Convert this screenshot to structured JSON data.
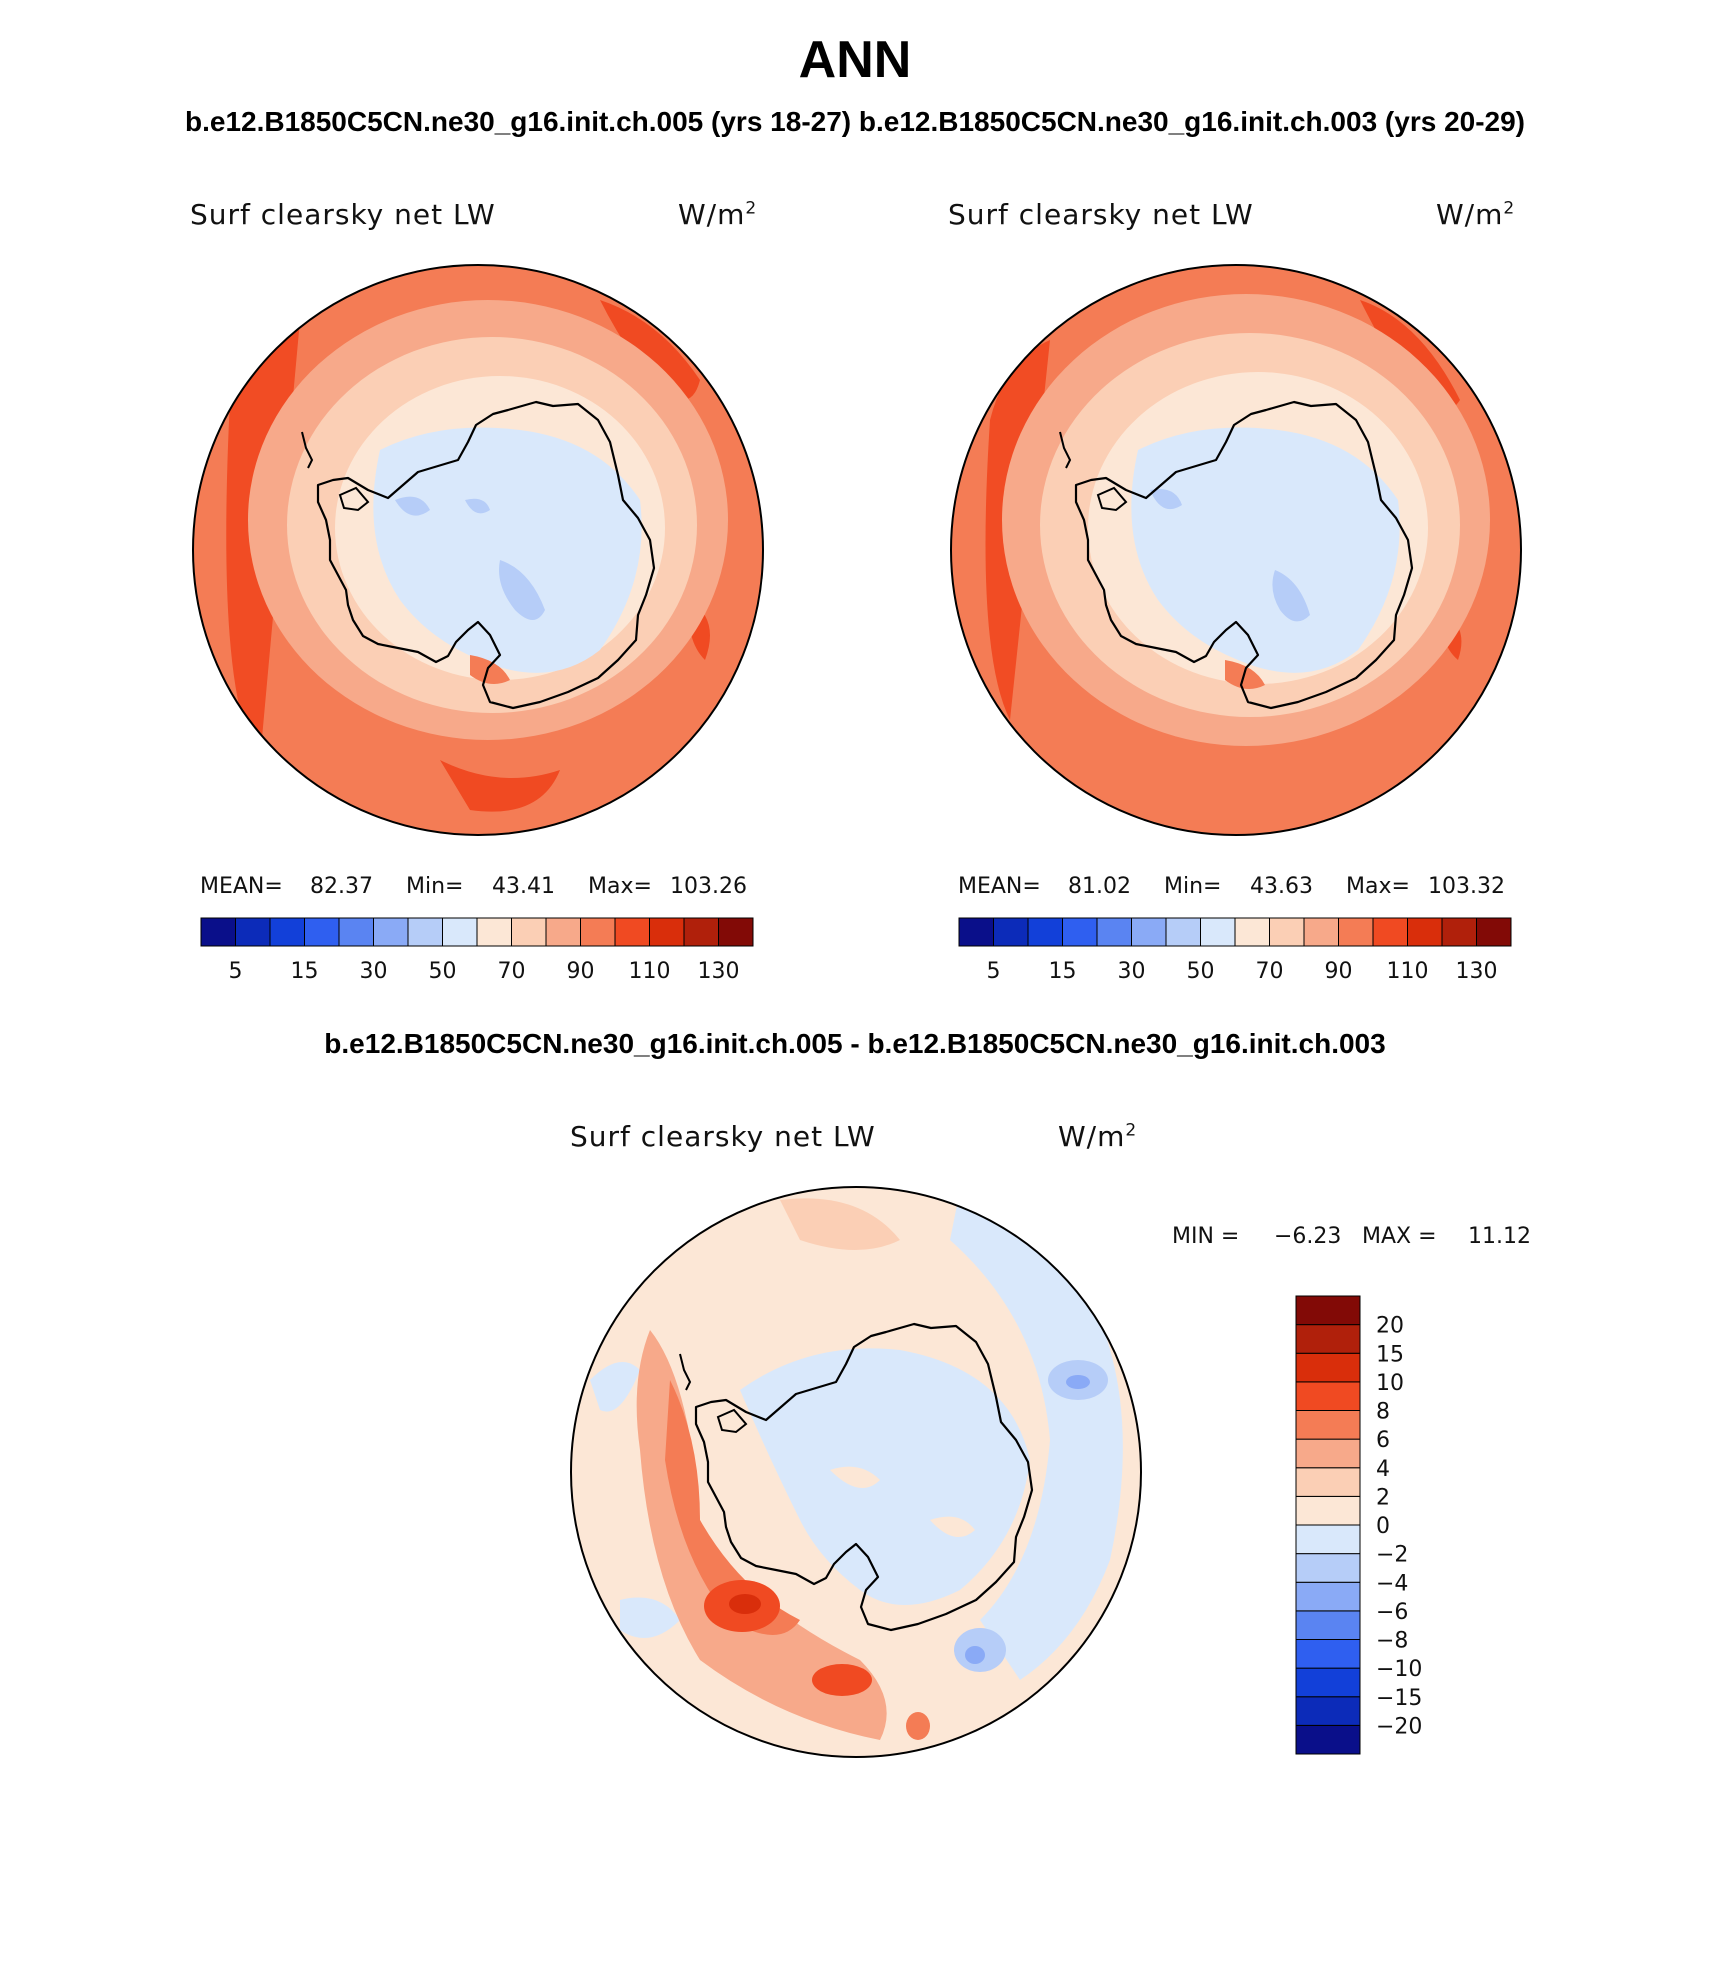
{
  "figure": {
    "season": "ANN",
    "subtitle": "b.e12.B1850C5CN.ne30_g16.init.ch.005 (yrs 18-27) b.e12.B1850C5CN.ne30_g16.init.ch.003 (yrs 20-29)",
    "diff_title": "b.e12.B1850C5CN.ne30_g16.init.ch.005 - b.e12.B1850C5CN.ne30_g16.init.ch.003"
  },
  "panels": [
    {
      "variable": "Surf clearsky net LW",
      "units_base": "W/m",
      "units_exp": "2",
      "mean_label": "MEAN=",
      "mean_value": "82.37",
      "min_label": "Min=",
      "min_value": "43.41",
      "max_label": "Max=",
      "max_value": "103.26"
    },
    {
      "variable": "Surf clearsky net LW",
      "units_base": "W/m",
      "units_exp": "2",
      "mean_label": "MEAN=",
      "mean_value": "81.02",
      "min_label": "Min=",
      "min_value": "43.63",
      "max_label": "Max=",
      "max_value": "103.32"
    },
    {
      "variable": "Surf clearsky net LW",
      "units_base": "W/m",
      "units_exp": "2",
      "min_label": "MIN =",
      "min_value": "−6.23",
      "max_label": "MAX =",
      "max_value": "11.12"
    }
  ],
  "colorbar_abs": {
    "colors": [
      "#0a0f8a",
      "#0c2bb9",
      "#1240d9",
      "#2f5ff0",
      "#5a84f2",
      "#8aaaf6",
      "#b6cdf8",
      "#d9e8fb",
      "#fce7d6",
      "#fbcfb5",
      "#f7a98a",
      "#f47c55",
      "#f04a22",
      "#d92e0b",
      "#b0200b",
      "#820a06"
    ],
    "tick_labels": [
      "5",
      "15",
      "30",
      "50",
      "70",
      "90",
      "110",
      "130"
    ]
  },
  "colorbar_diff": {
    "colors": [
      "#0a0f8a",
      "#0c2bb9",
      "#1240d9",
      "#2f5ff0",
      "#5a84f2",
      "#8aaaf6",
      "#b6cdf8",
      "#d9e8fb",
      "#fce7d6",
      "#fbcfb5",
      "#f7a98a",
      "#f47c55",
      "#f04a22",
      "#d92e0b",
      "#b0200b",
      "#820a06"
    ],
    "tick_labels": [
      "−20",
      "−15",
      "−10",
      "−8",
      "−6",
      "−4",
      "−2",
      "0",
      "2",
      "4",
      "6",
      "8",
      "10",
      "15",
      "20"
    ]
  }
}
